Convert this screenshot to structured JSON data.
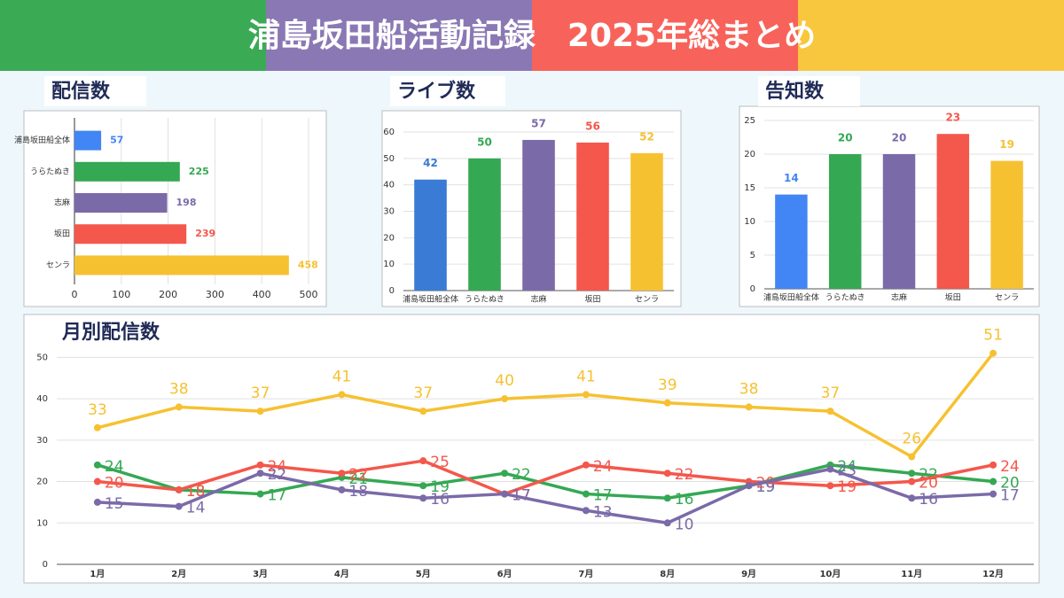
{
  "title": "浦島坂田船活動記録　2025年総まとめ",
  "chart_data": [
    {
      "type": "hbar",
      "title": "配信数",
      "categories": [
        "浦島坂田船全体",
        "うらたぬき",
        "志麻",
        "坂田",
        "センラ"
      ],
      "values": [
        57,
        225,
        198,
        239,
        458
      ],
      "colors": [
        "#4285f4",
        "#34a853",
        "#7b6aa8",
        "#f4574b",
        "#f6c131"
      ],
      "xlim": [
        0,
        500
      ],
      "xticks": [
        0,
        100,
        200,
        300,
        400,
        500
      ],
      "grid": true
    },
    {
      "type": "bar",
      "title": "ライブ数",
      "categories": [
        "浦島坂田船全体",
        "うらたぬき",
        "志麻",
        "坂田",
        "センラ"
      ],
      "values": [
        42,
        50,
        57,
        56,
        52
      ],
      "colors": [
        "#3a7bd5",
        "#34a853",
        "#7b6aa8",
        "#f4574b",
        "#f6c131"
      ],
      "ylim": [
        0,
        60
      ],
      "yticks": [
        0,
        10,
        20,
        30,
        40,
        50,
        60
      ],
      "grid": true
    },
    {
      "type": "bar",
      "title": "告知数",
      "categories": [
        "浦島坂田船全体",
        "うらたぬき",
        "志麻",
        "坂田",
        "センラ"
      ],
      "values": [
        14,
        20,
        20,
        23,
        19
      ],
      "colors": [
        "#4285f4",
        "#34a853",
        "#7b6aa8",
        "#f4574b",
        "#f6c131"
      ],
      "ylim": [
        0,
        25
      ],
      "yticks": [
        0,
        5,
        10,
        15,
        20,
        25
      ],
      "grid": true
    },
    {
      "type": "line",
      "title": "月別配信数",
      "categories": [
        "1月",
        "2月",
        "3月",
        "4月",
        "5月",
        "6月",
        "7月",
        "8月",
        "9月",
        "10月",
        "11月",
        "12月"
      ],
      "series": [
        {
          "color": "#f6c131",
          "values": [
            33,
            38,
            37,
            41,
            37,
            40,
            41,
            39,
            38,
            37,
            26,
            51
          ]
        },
        {
          "color": "#34a853",
          "values": [
            24,
            18,
            17,
            21,
            19,
            22,
            17,
            16,
            19,
            24,
            22,
            20
          ]
        },
        {
          "color": "#f4574b",
          "values": [
            20,
            18,
            24,
            22,
            25,
            17,
            24,
            22,
            20,
            19,
            20,
            24
          ]
        },
        {
          "color": "#7b6aa8",
          "values": [
            15,
            14,
            22,
            18,
            16,
            17,
            13,
            10,
            19,
            23,
            16,
            17
          ]
        }
      ],
      "ylim": [
        0,
        55
      ],
      "yticks": [
        0,
        10,
        20,
        30,
        40,
        50
      ],
      "grid": true
    }
  ]
}
